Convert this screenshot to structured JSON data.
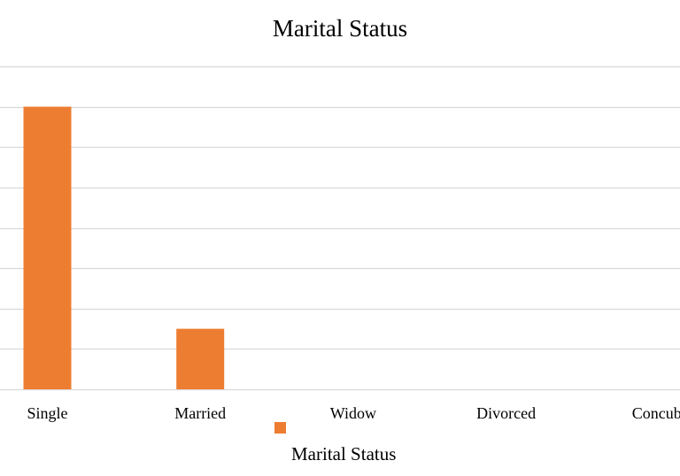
{
  "chart_data": {
    "type": "bar",
    "title": "Marital Status",
    "categories": [
      "Single",
      "Married",
      "Widow",
      "Divorced",
      "Concubi"
    ],
    "series": [
      {
        "name": "Marital Status",
        "values": [
          70,
          15,
          0,
          0,
          0
        ],
        "color": "#ED7D31"
      }
    ],
    "ylim": [
      0,
      80
    ],
    "grid": true,
    "legend_position": "bottom"
  }
}
